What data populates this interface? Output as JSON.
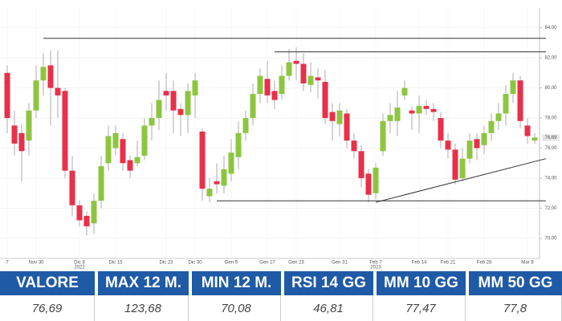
{
  "chart_data": {
    "type": "candlestick",
    "categories": [
      "7",
      null,
      null,
      null,
      "Nov 30",
      null,
      null,
      null,
      null,
      null,
      "Dic 8",
      null,
      null,
      null,
      null,
      "Dic 15",
      null,
      null,
      null,
      null,
      null,
      null,
      "Dic 23",
      null,
      null,
      null,
      "Dic 30",
      null,
      null,
      null,
      null,
      "Gen 9",
      null,
      null,
      null,
      null,
      "Gen 17",
      null,
      null,
      null,
      "Gen 23",
      null,
      null,
      null,
      null,
      null,
      "Gen 31",
      null,
      null,
      null,
      null,
      "Feb 7",
      null,
      null,
      null,
      null,
      null,
      "Feb 14",
      null,
      null,
      null,
      "Feb 21",
      null,
      null,
      null,
      null,
      "Feb 28",
      null,
      null,
      null,
      null,
      null,
      "Mar 8",
      null
    ],
    "x_sublabels": [
      null,
      null,
      null,
      null,
      null,
      null,
      null,
      null,
      null,
      null,
      "2022",
      null,
      null,
      null,
      null,
      null,
      null,
      null,
      null,
      null,
      null,
      null,
      null,
      null,
      null,
      null,
      null,
      null,
      null,
      null,
      null,
      null,
      null,
      null,
      null,
      null,
      null,
      null,
      null,
      null,
      null,
      null,
      null,
      null,
      null,
      null,
      null,
      null,
      null,
      null,
      null,
      "2023",
      null,
      null,
      null,
      null,
      null,
      null,
      null,
      null,
      null,
      null,
      null,
      null,
      null,
      null,
      null,
      null,
      null,
      null,
      null,
      null,
      null,
      null
    ],
    "open": [
      81,
      77.5,
      77,
      76.5,
      78.5,
      80.5,
      81.5,
      80,
      79.8,
      74.5,
      72.2,
      71.5,
      71,
      72.5,
      75,
      76,
      76.6,
      75.2,
      75,
      75.5,
      77.5,
      78,
      79.8,
      79.8,
      78.6,
      78.2,
      79.5,
      77.1,
      72.8,
      73.8,
      73.5,
      74.3,
      75.4,
      77,
      78,
      79.6,
      80.6,
      79.8,
      79.6,
      80.8,
      81.8,
      81.6,
      80.2,
      80.7,
      80.4,
      78.4,
      77.6,
      78.3,
      76.5,
      75.8,
      74.3,
      73,
      75.8,
      77.8,
      77.8,
      79.5,
      78.5,
      78.3,
      78.8,
      78.6,
      78,
      76.5,
      75.9,
      74,
      75.3,
      76.6,
      76.2,
      77,
      77.8,
      78.3,
      79.6,
      80.5,
      77.5,
      76.5
    ],
    "high": [
      81.5,
      78.5,
      77.6,
      79,
      81.5,
      82.3,
      82.5,
      82.5,
      80,
      75.5,
      72.5,
      71.8,
      73,
      75.5,
      77.5,
      77.5,
      77,
      75.5,
      76.5,
      78,
      79,
      80.5,
      81,
      80.5,
      79,
      80.3,
      81,
      77.3,
      74,
      75,
      75.5,
      76.6,
      77.8,
      78.5,
      80.3,
      81.3,
      81.8,
      80.5,
      81.5,
      82.6,
      82.7,
      82.3,
      81.7,
      81.3,
      81.2,
      79,
      79,
      78.6,
      77,
      76.2,
      74.6,
      75,
      78.3,
      79,
      79.8,
      80.5,
      78.8,
      79.5,
      79.2,
      79,
      78.4,
      77,
      76.3,
      76,
      77,
      77,
      77.5,
      78.3,
      79,
      80.2,
      81,
      80.8,
      78,
      77
    ],
    "low": [
      77,
      75.5,
      73.8,
      75.5,
      78,
      79.5,
      77.5,
      78,
      74,
      71.5,
      70.8,
      70.2,
      70.3,
      72,
      74.5,
      75.5,
      74.5,
      74,
      74.8,
      75.2,
      76.5,
      77.2,
      78.5,
      77,
      76.8,
      77,
      78,
      72.5,
      72.4,
      73,
      73,
      73.8,
      74.6,
      76.5,
      77.5,
      79,
      79,
      78.6,
      79.2,
      80.5,
      80.5,
      79.8,
      79.7,
      79.3,
      77.6,
      76.5,
      76.8,
      76,
      75.3,
      73.4,
      72.4,
      72.6,
      75.5,
      77,
      76.8,
      79.2,
      77.2,
      77,
      78.2,
      77.8,
      76,
      75.3,
      73.6,
      73.8,
      75,
      75.2,
      75.6,
      76.5,
      77.2,
      77.5,
      79,
      77.3,
      76.3,
      76.3
    ],
    "close": [
      78,
      76.3,
      75.8,
      78.5,
      80.5,
      81.4,
      80,
      79.5,
      74.5,
      72.2,
      71.2,
      70.8,
      72.5,
      74.8,
      76.8,
      77,
      75,
      74.5,
      75.4,
      77.5,
      78,
      79.2,
      79.5,
      78.5,
      78.2,
      79.8,
      80.5,
      73.3,
      73.3,
      73.6,
      74.6,
      75.7,
      77,
      78,
      79.6,
      80.8,
      79.5,
      79.2,
      80.8,
      81.7,
      81.6,
      80.3,
      80.8,
      80.5,
      78,
      77.8,
      78.5,
      76.5,
      75.8,
      74,
      72.9,
      74.7,
      77.8,
      78.2,
      78.7,
      80,
      78.3,
      78.8,
      78.6,
      78.4,
      76.5,
      75.9,
      73.9,
      75.3,
      76.5,
      76,
      77,
      77.8,
      78.3,
      79.6,
      80.5,
      77.8,
      76.8,
      76.7
    ],
    "up_color": "#8cc63f",
    "down_color": "#e8304a",
    "ylim": [
      68.67,
      85.31
    ],
    "yticks": [
      {
        "value": 70,
        "label": "70,00"
      },
      {
        "value": 72,
        "label": "72,00"
      },
      {
        "value": 74,
        "label": "74,00"
      },
      {
        "value": 76,
        "label": "76,00"
      },
      {
        "value": 78,
        "label": "78,00"
      },
      {
        "value": 80,
        "label": "80,00"
      },
      {
        "value": 82,
        "label": "82,00"
      },
      {
        "value": 84,
        "label": "84,00"
      }
    ],
    "last_price": {
      "value": 76.69,
      "label": "76,69"
    },
    "horizontal_lines": [
      {
        "from": 5,
        "level": 83.3
      },
      {
        "from": 37,
        "level": 82.4
      },
      {
        "from": 29,
        "level": 72.5
      }
    ],
    "trend_line": {
      "from": 51,
      "start": 72.4,
      "end": 75.3
    },
    "grid": true
  },
  "table": {
    "headers": [
      "VALORE",
      "MAX 12 M.",
      "MIN 12 M.",
      "RSI 14 GG",
      "MM 10 GG",
      "MM 50 GG"
    ],
    "values": [
      "76,69",
      "123,68",
      "70,08",
      "46,81",
      "77,47",
      "77,8"
    ]
  }
}
